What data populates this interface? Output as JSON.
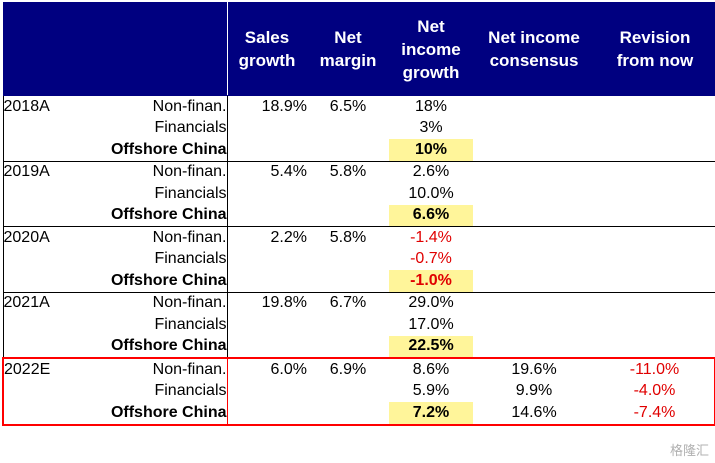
{
  "headers": {
    "sales": [
      "Sales",
      "growth"
    ],
    "margin": [
      "Net",
      "margin"
    ],
    "ni_growth": [
      "Net",
      "income",
      "growth"
    ],
    "consensus": [
      "Net income",
      "consensus"
    ],
    "revision": [
      "Revision",
      "from now"
    ]
  },
  "rows": [
    {
      "year": "2018A",
      "seg": "Non-finan.",
      "sales": "18.9%",
      "margin": "6.5%",
      "ni": "18%",
      "cons": "",
      "rev": ""
    },
    {
      "year": "",
      "seg": "Financials",
      "sales": "",
      "margin": "",
      "ni": "3%",
      "cons": "",
      "rev": ""
    },
    {
      "year": "",
      "seg": "Offshore China",
      "sales": "",
      "margin": "",
      "ni": "10%",
      "cons": "",
      "rev": ""
    },
    {
      "year": "2019A",
      "seg": "Non-finan.",
      "sales": "5.4%",
      "margin": "5.8%",
      "ni": "2.6%",
      "cons": "",
      "rev": ""
    },
    {
      "year": "",
      "seg": "Financials",
      "sales": "",
      "margin": "",
      "ni": "10.0%",
      "cons": "",
      "rev": ""
    },
    {
      "year": "",
      "seg": "Offshore China",
      "sales": "",
      "margin": "",
      "ni": "6.6%",
      "cons": "",
      "rev": ""
    },
    {
      "year": "2020A",
      "seg": "Non-finan.",
      "sales": "2.2%",
      "margin": "5.8%",
      "ni": "-1.4%",
      "cons": "",
      "rev": ""
    },
    {
      "year": "",
      "seg": "Financials",
      "sales": "",
      "margin": "",
      "ni": "-0.7%",
      "cons": "",
      "rev": ""
    },
    {
      "year": "",
      "seg": "Offshore China",
      "sales": "",
      "margin": "",
      "ni": "-1.0%",
      "cons": "",
      "rev": ""
    },
    {
      "year": "2021A",
      "seg": "Non-finan.",
      "sales": "19.8%",
      "margin": "6.7%",
      "ni": "29.0%",
      "cons": "",
      "rev": ""
    },
    {
      "year": "",
      "seg": "Financials",
      "sales": "",
      "margin": "",
      "ni": "17.0%",
      "cons": "",
      "rev": ""
    },
    {
      "year": "",
      "seg": "Offshore China",
      "sales": "",
      "margin": "",
      "ni": "22.5%",
      "cons": "",
      "rev": ""
    },
    {
      "year": "2022E",
      "seg": "Non-finan.",
      "sales": "6.0%",
      "margin": "6.9%",
      "ni": "8.6%",
      "cons": "19.6%",
      "rev": "-11.0%"
    },
    {
      "year": "",
      "seg": "Financials",
      "sales": "",
      "margin": "",
      "ni": "5.9%",
      "cons": "9.9%",
      "rev": "-4.0%"
    },
    {
      "year": "",
      "seg": "Offshore China",
      "sales": "",
      "margin": "",
      "ni": "7.2%",
      "cons": "14.6%",
      "rev": "-7.4%"
    }
  ],
  "colors": {
    "header_bg": "#000080",
    "highlight": "#fff59a",
    "negative": "#e00000",
    "estimate_border": "#ff0000"
  },
  "watermark": "格隆汇"
}
